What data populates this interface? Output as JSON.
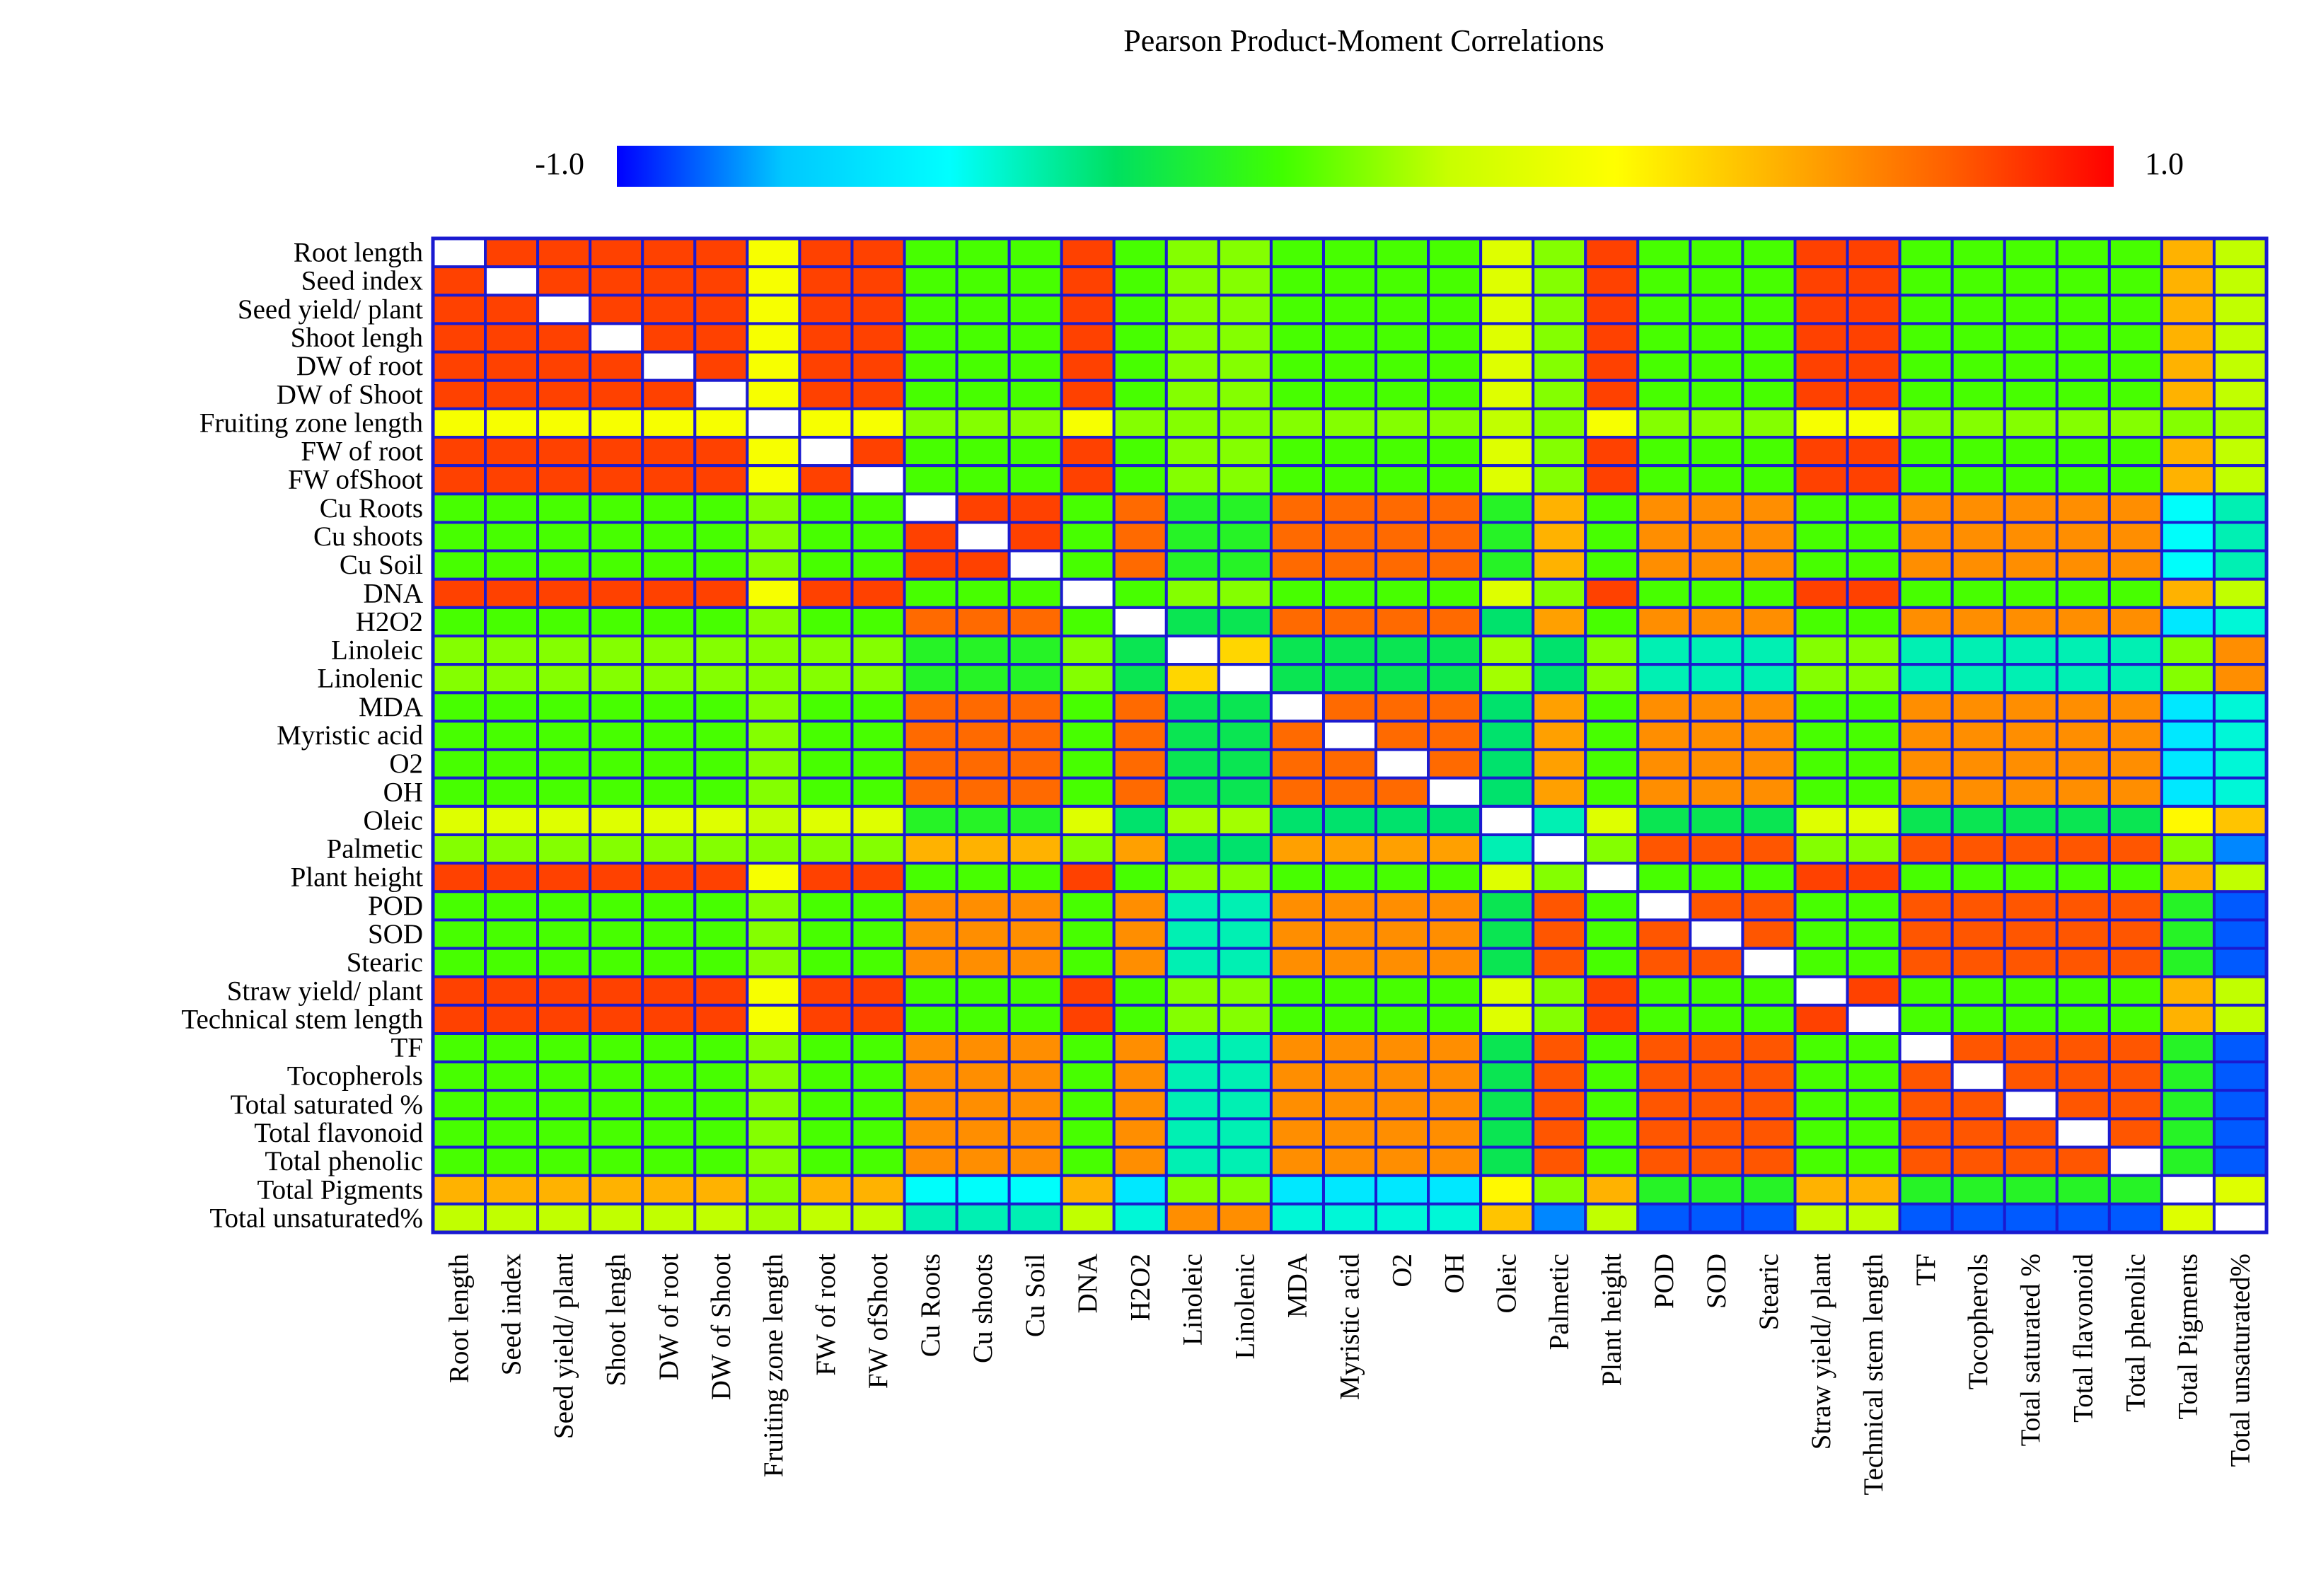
{
  "chart_data": {
    "type": "heatmap",
    "title": "Pearson Product-Moment Correlations",
    "colorbar": {
      "min_label": "-1.0",
      "max_label": "1.0",
      "min": -1.0,
      "max": 1.0,
      "colors": [
        "#0000ff",
        "#00c8ff",
        "#00ffff",
        "#00e060",
        "#40ff00",
        "#c8ff00",
        "#ffff00",
        "#ffb000",
        "#ff6000",
        "#ff0000"
      ]
    },
    "diagonal_color": "#ffffff",
    "grid_color": "#1a1ad0",
    "row_labels": [
      "Root length",
      "Seed index",
      "Seed yield/ plant",
      "Shoot lengh",
      "DW of root",
      "DW of Shoot",
      "Fruiting zone length",
      "FW of root",
      "FW ofShoot",
      "Cu Roots",
      "Cu shoots",
      "Cu Soil",
      "DNA",
      "H2O2",
      "Linoleic",
      "Linolenic",
      "MDA",
      "Myristic acid",
      "O2",
      "OH",
      "Oleic",
      "Palmetic",
      "Plant height",
      "POD",
      "SOD",
      "Stearic",
      "Straw yield/ plant",
      "Technical stem length",
      "TF",
      "Tocopherols",
      "Total  saturated %",
      "Total flavonoid",
      "Total phenolic",
      "Total Pigments",
      "Total unsaturated%"
    ],
    "column_labels": [
      "Root length",
      "Seed index",
      "Seed yield/ plant",
      "Shoot lengh",
      "DW of root",
      "DW of Shoot",
      "Fruiting zone length",
      "FW of root",
      "FW ofShoot",
      "Cu Roots",
      "Cu shoots",
      "Cu Soil",
      "DNA",
      "H2O2",
      "Linoleic",
      "Linolenic",
      "MDA",
      "Myristic acid",
      "O2",
      "OH",
      "Oleic",
      "Palmetic",
      "Plant height",
      "POD",
      "SOD",
      "Stearic",
      "Straw  yield/ plant",
      "Technical stem length",
      "TF",
      "Tocopherols",
      "Total  saturated %",
      "Total flavonoid",
      "Total phenolic",
      "Total Pigments",
      "Total unsaturated%"
    ],
    "group_values": {
      "GA_GA": 0.85,
      "GA_FZ": 0.3,
      "GA_CU": -0.1,
      "GA_OX": -0.1,
      "GA_LIP": 0.0,
      "GA_ANT": -0.1,
      "GA_OL": 0.2,
      "GA_PAL": 0.0,
      "GA_PIG": 0.55,
      "GA_UNS": 0.1,
      "FZ_CU": 0.0,
      "FZ_OX": 0.0,
      "FZ_LIP": 0.0,
      "FZ_ANT": 0.0,
      "FZ_OL": 0.1,
      "FZ_PAL": 0.0,
      "FZ_PIG": 0.0,
      "FZ_UNS": 0.05,
      "CU_CU": 0.85,
      "CU_OX": 0.75,
      "CU_LIP": -0.2,
      "CU_ANT": 0.65,
      "CU_OL": -0.2,
      "CU_PAL": 0.55,
      "CU_PIG": -0.55,
      "CU_UNS": -0.45,
      "OX_OX": 0.75,
      "OX_LIP": -0.3,
      "OX_ANT": 0.65,
      "OX_OL": -0.35,
      "OX_PAL": 0.6,
      "OX_PIG": -0.65,
      "OX_UNS": -0.5,
      "LIP_LIP": 0.45,
      "LIP_ANT": -0.45,
      "LIP_OL": 0.05,
      "LIP_PAL": -0.35,
      "LIP_PIG": 0.0,
      "LIP_UNS": 0.65,
      "ANT_ANT": 0.8,
      "ANT_OL": -0.3,
      "ANT_PAL": 0.8,
      "ANT_PIG": -0.2,
      "ANT_UNS": -0.9,
      "OL_PAL": -0.45,
      "OL_PIG": 0.35,
      "OL_UNS": 0.5,
      "PAL_PIG": 0.0,
      "PAL_UNS": -0.85,
      "PIG_UNS": 0.2
    },
    "row_groups": [
      "GA",
      "GA",
      "GA",
      "GA",
      "GA",
      "GA",
      "FZ",
      "GA",
      "GA",
      "CU",
      "CU",
      "CU",
      "GA",
      "OX",
      "LIP",
      "LIP",
      "OX",
      "OX",
      "OX",
      "OX",
      "OL",
      "PAL",
      "GA",
      "ANT",
      "ANT",
      "ANT",
      "GA",
      "GA",
      "ANT",
      "ANT",
      "ANT",
      "ANT",
      "ANT",
      "PIG",
      "UNS"
    ]
  }
}
